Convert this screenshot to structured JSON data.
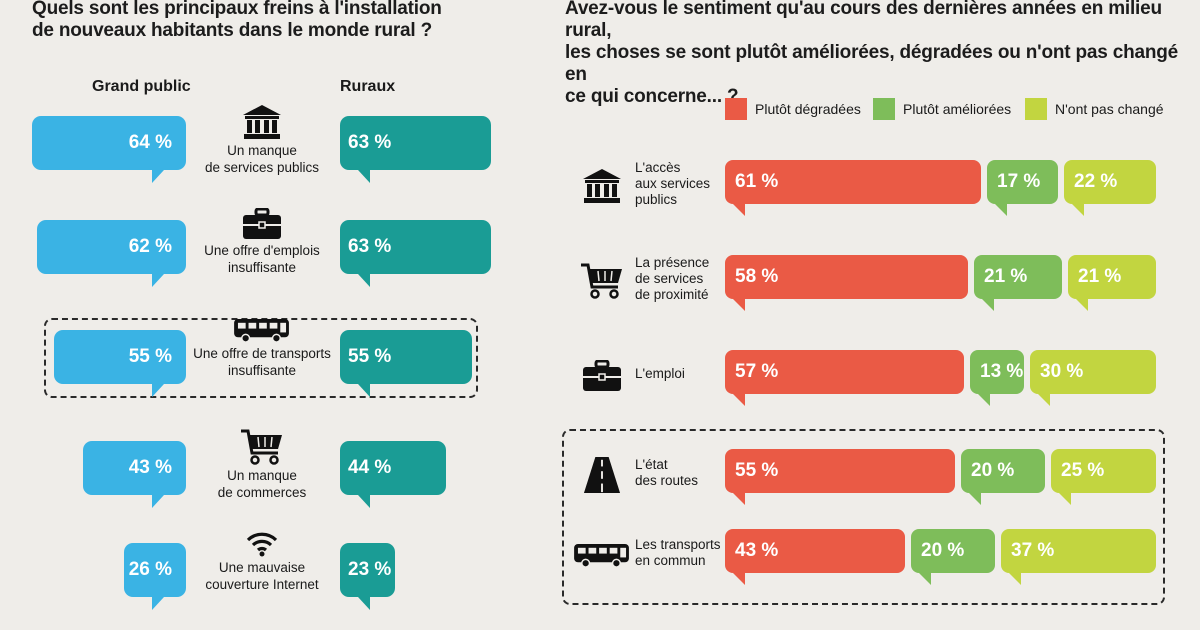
{
  "colors": {
    "grand_public": "#3ab3e4",
    "ruraux": "#1a9c95",
    "degradees": "#ea5a45",
    "ameliorees": "#7ebd5a",
    "pas_change": "#c2d540"
  },
  "left": {
    "title_line1": "Quels sont les principaux freins à l'installation",
    "title_line2": "de nouveaux habitants dans le monde rural ?",
    "col_grand_public": "Grand public",
    "col_ruraux": "Ruraux",
    "rows": [
      {
        "icon": "bank-icon",
        "label_line1": "Un manque",
        "label_line2": "de services publics",
        "grand_public": 64,
        "ruraux": 63,
        "grand_public_label": "64 %",
        "ruraux_label": "63 %",
        "highlighted": false
      },
      {
        "icon": "briefcase-icon",
        "label_line1": "Une offre d'emplois",
        "label_line2": "insuffisante",
        "grand_public": 62,
        "ruraux": 63,
        "grand_public_label": "62 %",
        "ruraux_label": "63 %",
        "highlighted": false
      },
      {
        "icon": "bus-icon",
        "label_line1": "Une offre de transports",
        "label_line2": "insuffisante",
        "grand_public": 55,
        "ruraux": 55,
        "grand_public_label": "55 %",
        "ruraux_label": "55 %",
        "highlighted": true
      },
      {
        "icon": "shopping-cart-icon",
        "label_line1": "Un manque",
        "label_line2": "de commerces",
        "grand_public": 43,
        "ruraux": 44,
        "grand_public_label": "43 %",
        "ruraux_label": "44 %",
        "highlighted": false
      },
      {
        "icon": "wifi-icon",
        "label_line1": "Une mauvaise",
        "label_line2": "couverture Internet",
        "grand_public": 26,
        "ruraux": 23,
        "grand_public_label": "26 %",
        "ruraux_label": "23 %",
        "highlighted": false
      }
    ]
  },
  "right": {
    "title_line1": "Avez-vous le sentiment qu'au cours des dernières années en milieu rural,",
    "title_line2": "les choses se sont plutôt améliorées, dégradées ou n'ont pas changé en",
    "title_line3": "ce qui concerne... ?",
    "legend": [
      "Plutôt dégradées",
      "Plutôt améliorées",
      "N'ont pas changé"
    ],
    "rows": [
      {
        "icon": "bank-icon",
        "label_lines": [
          "L'accès",
          "aux services",
          "publics"
        ],
        "values": [
          61,
          17,
          22
        ],
        "labels": [
          "61 %",
          "17 %",
          "22 %"
        ],
        "highlighted": false
      },
      {
        "icon": "shopping-cart-icon",
        "label_lines": [
          "La présence",
          "de services",
          "de proximité"
        ],
        "values": [
          58,
          21,
          21
        ],
        "labels": [
          "58 %",
          "21 %",
          "21 %"
        ],
        "highlighted": false
      },
      {
        "icon": "briefcase-icon",
        "label_lines": [
          "L'emploi"
        ],
        "values": [
          57,
          13,
          30
        ],
        "labels": [
          "57 %",
          "13 %",
          "30 %"
        ],
        "highlighted": false
      },
      {
        "icon": "road-icon",
        "label_lines": [
          "L'état",
          "des routes"
        ],
        "values": [
          55,
          20,
          25
        ],
        "labels": [
          "55 %",
          "20 %",
          "25 %"
        ],
        "highlighted": true
      },
      {
        "icon": "bus-icon",
        "label_lines": [
          "Les transports",
          "en commun"
        ],
        "values": [
          43,
          20,
          37
        ],
        "labels": [
          "43 %",
          "20 %",
          "37 %"
        ],
        "highlighted": true
      }
    ]
  },
  "chart_data": [
    {
      "type": "bar",
      "title": "Quels sont les principaux freins à l'installation de nouveaux habitants dans le monde rural ?",
      "categories": [
        "Un manque de services publics",
        "Une offre d'emplois insuffisante",
        "Une offre de transports insuffisante",
        "Un manque de commerces",
        "Une mauvaise couverture Internet"
      ],
      "series": [
        {
          "name": "Grand public",
          "values": [
            64,
            62,
            55,
            43,
            26
          ]
        },
        {
          "name": "Ruraux",
          "values": [
            63,
            63,
            55,
            44,
            23
          ]
        }
      ],
      "unit": "%"
    },
    {
      "type": "bar",
      "stacked": true,
      "title": "Avez-vous le sentiment qu'au cours des dernières années en milieu rural, les choses se sont plutôt améliorées, dégradées ou n'ont pas changé en ce qui concerne... ?",
      "categories": [
        "L'accès aux services publics",
        "La présence de services de proximité",
        "L'emploi",
        "L'état des routes",
        "Les transports en commun"
      ],
      "series": [
        {
          "name": "Plutôt dégradées",
          "values": [
            61,
            58,
            57,
            55,
            43
          ]
        },
        {
          "name": "Plutôt améliorées",
          "values": [
            17,
            21,
            13,
            20,
            20
          ]
        },
        {
          "name": "N'ont pas changé",
          "values": [
            22,
            21,
            30,
            25,
            37
          ]
        }
      ],
      "unit": "%"
    }
  ]
}
